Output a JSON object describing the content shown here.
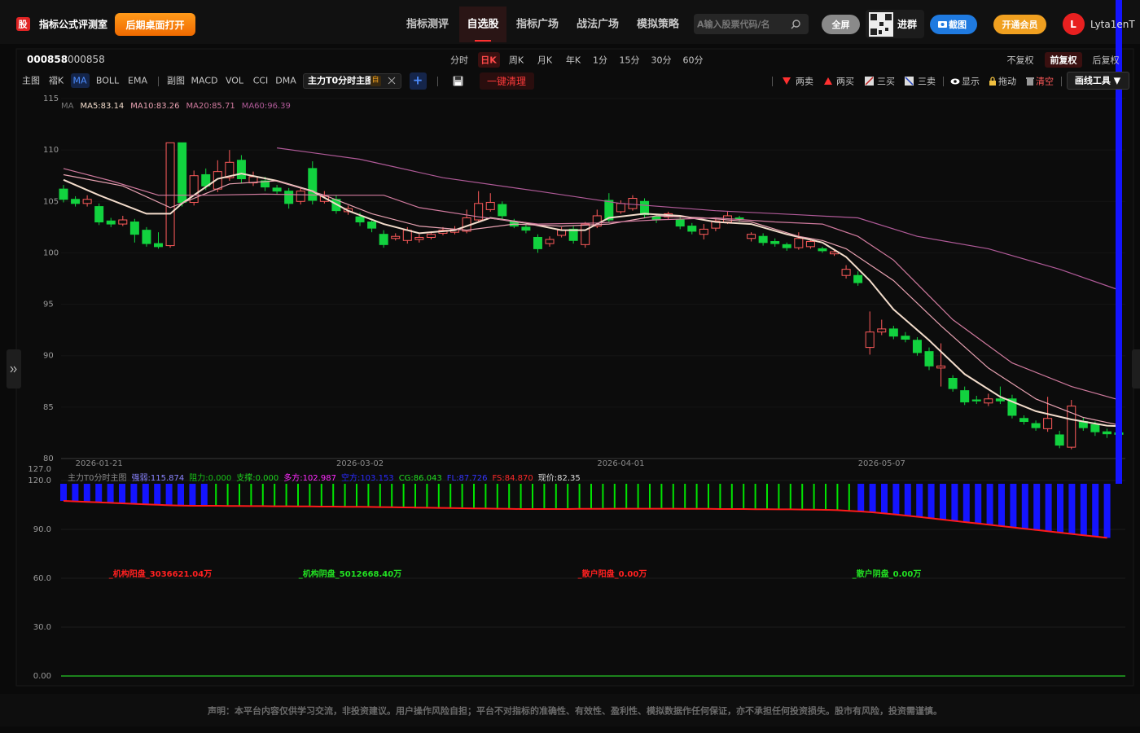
{
  "header": {
    "logo": "股",
    "title": "指标公式评测室",
    "open_button": "后期桌面打开",
    "nav": [
      "指标测评",
      "自选股",
      "指标广场",
      "战法广场",
      "模拟策略"
    ],
    "nav_active": 1,
    "search_placeholder": "A输入股票代码/名",
    "fullscreen": "全屏",
    "group": "进群",
    "screenshot": "截图",
    "vip": "开通会员",
    "avatar": "L",
    "user": "Lyta1enT"
  },
  "toolbar": {
    "code": "000858",
    "name": "000858",
    "periods": [
      "分时",
      "日K",
      "周K",
      "月K",
      "年K",
      "1分",
      "15分",
      "30分",
      "60分"
    ],
    "period_active": 1,
    "adjust": [
      "不复权",
      "前复权",
      "后复权"
    ],
    "adjust_active": 1,
    "main_label": "主图",
    "main_items": [
      "褶K",
      "MA",
      "BOLL",
      "EMA"
    ],
    "main_active": 1,
    "sub_label": "副图",
    "sub_items": [
      "MACD",
      "VOL",
      "CCI",
      "DMA"
    ],
    "indicator": "主力T0分时主图",
    "indicator_tag": "自",
    "add": "+",
    "clear": "一键清理",
    "signals": [
      "两卖",
      "两买",
      "三买",
      "三卖"
    ],
    "show": "显示",
    "drag": "拖动",
    "clear_drawings": "清空",
    "draw_tools": "画线工具 ▼"
  },
  "chart_data": [
    {
      "type": "candlestick",
      "categories": [
        null,
        null,
        null,
        "2026-01-21",
        null,
        null,
        null,
        null,
        null,
        null,
        null,
        null,
        null,
        null,
        null,
        null,
        null,
        null,
        null,
        null,
        null,
        null,
        null,
        null,
        null,
        "2026-03-02",
        null,
        null,
        null,
        null,
        null,
        null,
        null,
        null,
        null,
        null,
        null,
        null,
        null,
        null,
        null,
        null,
        null,
        null,
        null,
        null,
        null,
        "2026-04-01",
        null,
        null,
        null,
        null,
        null,
        null,
        null,
        null,
        null,
        null,
        null,
        null,
        null,
        null,
        null,
        null,
        null,
        null,
        null,
        null,
        null,
        "2026-05-07",
        null,
        null,
        null,
        null,
        null,
        null,
        null,
        null,
        null,
        null,
        null,
        null,
        null,
        null,
        null,
        null,
        null,
        null,
        null,
        null
      ],
      "open": [
        106.2,
        105.2,
        104.8,
        104.5,
        103.1,
        102.8,
        103.0,
        102.2,
        100.9,
        100.7,
        110.7,
        104.9,
        107.6,
        106.2,
        107.3,
        109.0,
        106.8,
        107.0,
        106.3,
        106.0,
        105.0,
        108.2,
        105.0,
        105.2,
        104.0,
        103.5,
        103.0,
        101.8,
        101.4,
        101.2,
        101.3,
        101.5,
        101.9,
        102.0,
        102.1,
        103.2,
        104.2,
        104.7,
        103.0,
        102.5,
        101.5,
        100.9,
        101.7,
        102.3,
        100.8,
        102.6,
        105.1,
        104.0,
        104.3,
        105.0,
        103.5,
        103.5,
        103.2,
        102.6,
        101.8,
        102.4,
        103.0,
        103.4,
        101.4,
        101.6,
        101.1,
        100.8,
        100.5,
        100.6,
        100.4,
        99.9,
        97.8,
        97.8,
        90.8,
        92.3,
        92.6,
        91.9,
        91.5,
        90.4,
        88.8,
        87.8,
        86.6,
        85.7,
        85.4,
        85.8,
        85.8,
        83.9,
        83.4,
        82.9,
        82.3,
        81.1,
        83.6,
        83.3,
        82.6,
        82.5
      ],
      "high": [
        106.6,
        105.5,
        105.6,
        104.8,
        103.4,
        103.6,
        103.3,
        102.5,
        102.0,
        110.7,
        110.7,
        108.0,
        108.2,
        109.0,
        110.0,
        109.5,
        107.9,
        107.4,
        106.6,
        106.3,
        106.4,
        108.9,
        106.0,
        105.6,
        104.6,
        103.9,
        103.3,
        102.2,
        101.9,
        102.5,
        101.8,
        102.1,
        102.5,
        102.6,
        104.2,
        106.0,
        105.8,
        105.0,
        103.3,
        102.8,
        101.8,
        101.6,
        102.5,
        102.6,
        103.0,
        104.2,
        105.8,
        105.1,
        105.6,
        105.3,
        103.8,
        104.0,
        103.5,
        102.9,
        102.8,
        103.4,
        104.0,
        103.6,
        102.0,
        101.9,
        101.4,
        101.0,
        102.0,
        101.3,
        100.6,
        100.3,
        98.8,
        98.2,
        94.3,
        93.5,
        92.9,
        92.3,
        91.8,
        90.8,
        91.2,
        88.1,
        87.0,
        86.1,
        86.3,
        87.0,
        86.2,
        84.2,
        83.7,
        86.0,
        82.7,
        85.7,
        84.0,
        83.6,
        82.9,
        82.8
      ],
      "low": [
        104.9,
        104.5,
        104.5,
        102.7,
        102.5,
        102.6,
        101.0,
        100.6,
        100.4,
        100.5,
        104.5,
        104.6,
        106.1,
        105.9,
        107.0,
        106.8,
        106.5,
        106.0,
        105.7,
        104.3,
        104.7,
        104.7,
        104.8,
        103.8,
        103.7,
        102.6,
        102.0,
        100.5,
        101.2,
        100.9,
        101.0,
        101.3,
        101.7,
        101.8,
        101.9,
        103.0,
        104.0,
        103.3,
        102.4,
        101.9,
        100.0,
        100.6,
        101.5,
        100.9,
        100.5,
        102.4,
        102.9,
        103.8,
        104.1,
        103.4,
        102.9,
        103.2,
        102.3,
        101.8,
        101.3,
        102.1,
        102.8,
        103.0,
        101.1,
        100.7,
        100.6,
        100.2,
        100.3,
        100.4,
        100.0,
        99.7,
        97.5,
        96.8,
        90.1,
        92.0,
        91.6,
        91.3,
        90.0,
        88.6,
        87.0,
        86.5,
        85.2,
        85.3,
        85.1,
        85.3,
        83.9,
        83.3,
        82.7,
        82.6,
        81.0,
        80.9,
        82.7,
        82.2,
        82.0,
        82.0
      ],
      "close": [
        105.2,
        104.8,
        105.2,
        103.0,
        102.8,
        103.2,
        101.8,
        100.9,
        100.6,
        110.7,
        104.9,
        107.5,
        106.5,
        107.9,
        108.8,
        107.2,
        107.4,
        106.4,
        106.0,
        104.8,
        106.0,
        105.1,
        105.5,
        104.1,
        104.3,
        103.0,
        102.4,
        100.8,
        101.6,
        102.2,
        101.5,
        101.8,
        102.2,
        102.3,
        103.4,
        104.8,
        104.9,
        103.6,
        102.6,
        102.2,
        100.4,
        101.3,
        102.2,
        101.2,
        102.8,
        103.6,
        103.2,
        104.8,
        105.3,
        103.7,
        103.2,
        103.8,
        102.6,
        102.1,
        102.3,
        103.1,
        103.6,
        103.3,
        101.8,
        101.0,
        100.9,
        100.5,
        101.4,
        101.1,
        100.2,
        100.1,
        98.4,
        97.1,
        92.3,
        92.6,
        91.9,
        91.6,
        90.3,
        89.0,
        89.0,
        86.8,
        85.5,
        85.6,
        85.8,
        85.6,
        84.2,
        83.6,
        83.0,
        83.9,
        81.3,
        85.1,
        83.0,
        82.6,
        82.4,
        82.35
      ],
      "up_color": "#ff5b5b",
      "down_color": "#12d23f",
      "ylim": [
        80,
        115
      ],
      "yticks": [
        80,
        85,
        90,
        95,
        100,
        105,
        110,
        115
      ],
      "grid": true,
      "ma_title": "MA",
      "ma_lines": [
        {
          "name": "MA5:83.14",
          "color": "#f3dccb",
          "x": [
            0,
            3,
            7,
            9,
            10,
            13,
            15,
            18,
            21,
            24,
            27,
            30,
            33,
            36,
            39,
            42,
            44,
            46,
            49,
            52,
            55,
            58,
            61,
            64,
            66,
            68,
            70,
            73,
            76,
            79,
            82,
            85,
            88,
            89
          ],
          "values": [
            107.1,
            105.6,
            103.8,
            103.8,
            104.8,
            107.2,
            107.7,
            107.0,
            106.0,
            104.1,
            102.8,
            101.9,
            102.2,
            103.4,
            102.9,
            102.2,
            102.2,
            103.4,
            103.8,
            103.6,
            103.0,
            102.8,
            101.8,
            101.0,
            99.6,
            97.3,
            94.5,
            91.5,
            88.2,
            86.0,
            84.6,
            83.8,
            83.2,
            83.14
          ]
        },
        {
          "name": "MA10:83.26",
          "color": "#e8a2b2",
          "x": [
            0,
            5,
            9,
            11,
            14,
            18,
            22,
            26,
            30,
            34,
            38,
            42,
            46,
            50,
            54,
            58,
            62,
            64,
            66,
            70,
            74,
            78,
            82,
            86,
            89
          ],
          "values": [
            107.6,
            106.5,
            104.4,
            105.3,
            106.7,
            107.0,
            105.6,
            103.8,
            102.6,
            102.2,
            102.8,
            102.6,
            102.8,
            103.6,
            103.4,
            103.0,
            101.6,
            101.2,
            100.4,
            97.3,
            92.9,
            88.8,
            85.8,
            84.0,
            83.26
          ]
        },
        {
          "name": "MA20:85.71",
          "color": "#d07a9e",
          "x": [
            0,
            4,
            8,
            12,
            17,
            22,
            27,
            30,
            35,
            40,
            45,
            50,
            55,
            60,
            64,
            67,
            70,
            75,
            80,
            85,
            89
          ],
          "values": [
            108.2,
            107.0,
            105.6,
            105.6,
            105.7,
            105.6,
            105.6,
            104.4,
            103.5,
            102.8,
            102.9,
            103.2,
            103.4,
            103.0,
            102.8,
            101.6,
            99.3,
            93.5,
            89.3,
            87.0,
            85.71
          ]
        },
        {
          "name": "MA60:96.39",
          "color": "#b05a98",
          "x": [
            18,
            25,
            32,
            40,
            47,
            55,
            62,
            67,
            72,
            78,
            84,
            89
          ],
          "values": [
            110.2,
            109.1,
            107.3,
            106.0,
            104.8,
            104.1,
            103.7,
            103.4,
            101.6,
            100.4,
            98.4,
            96.39
          ]
        }
      ]
    },
    {
      "type": "indicator",
      "legend": [
        {
          "text": "主力T0分时主图",
          "color": "#8a8a8a"
        },
        {
          "text": "强弱:115.874",
          "color": "#8a84ff"
        },
        {
          "text": "阻力:0.000",
          "color": "#17c217"
        },
        {
          "text": "支撑:0.000",
          "color": "#1fd41f"
        },
        {
          "text": "多方:102.987",
          "color": "#ff2bff"
        },
        {
          "text": "空方:103.153",
          "color": "#2a2aff"
        },
        {
          "text": "CG:86.043",
          "color": "#22e022"
        },
        {
          "text": "FL:87.726",
          "color": "#3535ff"
        },
        {
          "text": "FS:84.870",
          "color": "#ff2a2a"
        },
        {
          "text": "现价:82.35",
          "color": "#dddddd"
        }
      ],
      "ylim": [
        0,
        127
      ],
      "yticks": [
        {
          "value": 0,
          "label": "0.00"
        },
        {
          "value": 30,
          "label": "30.0"
        },
        {
          "value": 60,
          "label": "60.0"
        },
        {
          "value": 90,
          "label": "90.0"
        },
        {
          "value": 120,
          "label": "120.0"
        },
        {
          "value": 127,
          "label": "127.0"
        }
      ],
      "grid": true,
      "baseline_color": "#22aa22",
      "bar_top": 118,
      "bar_colors": [
        "#1414ff",
        "#1414ff",
        "#1414ff",
        "#1414ff",
        "#1414ff",
        "#1414ff",
        "#1414ff",
        "#1414ff",
        "#1414ff",
        "#1414ff",
        "#1414ff",
        "#1414ff",
        "#1414ff",
        "#00e400",
        "#00e400",
        "#00e400",
        "#00e400",
        "#00e400",
        "#00e400",
        "#00e400",
        "#00e400",
        "#00e400",
        "#00e400",
        "#00e400",
        "#00e400",
        "#00e400",
        "#00e400",
        "#00e400",
        "#00e400",
        "#00e400",
        "#00e400",
        "#00e400",
        "#00e400",
        "#00e400",
        "#00e400",
        "#00e400",
        "#00e400",
        "#00e400",
        "#00e400",
        "#00e400",
        "#00e400",
        "#00e400",
        "#00e400",
        "#00e400",
        "#00e400",
        "#00e400",
        "#00e400",
        "#00e400",
        "#00e400",
        "#00e400",
        "#00e400",
        "#00e400",
        "#00e400",
        "#00e400",
        "#00e400",
        "#00e400",
        "#00e400",
        "#00e400",
        "#00e400",
        "#00e400",
        "#00e400",
        "#00e400",
        "#00e400",
        "#00e400",
        "#00e400",
        "#00e400",
        "#00e400",
        "#00e400",
        "#1414ff",
        "#1414ff",
        "#1414ff",
        "#1414ff",
        "#1414ff",
        "#1414ff",
        "#1414ff",
        "#1414ff",
        "#1414ff",
        "#1414ff",
        "#1414ff",
        "#1414ff",
        "#1414ff",
        "#1414ff",
        "#1414ff",
        "#1414ff",
        "#1414ff",
        "#1414ff",
        "#1414ff",
        "#1414ff",
        "#1414ff",
        "#1414ff",
        "#1414ff"
      ],
      "series": [
        {
          "color": "#ff1a1a",
          "values": [
            107.5,
            107.2,
            106.9,
            106.6,
            106.3,
            106,
            105.7,
            105.4,
            105.1,
            104.8,
            104.6,
            104.5,
            104.5,
            104.5,
            104.4,
            104.4,
            104.3,
            104.3,
            104.2,
            104.2,
            104.1,
            104.1,
            104,
            104,
            103.9,
            103.9,
            103.8,
            103.7,
            103.6,
            103.5,
            103.4,
            103.3,
            103.2,
            103.1,
            103,
            102.9,
            102.8,
            102.7,
            102.6,
            102.5,
            102.5,
            102.5,
            102.5,
            102.5,
            102.6,
            102.6,
            102.6,
            102.7,
            102.7,
            102.7,
            102.7,
            102.7,
            102.7,
            102.6,
            102.6,
            102.6,
            102.5,
            102.5,
            102.5,
            102.4,
            102.4,
            102.3,
            102.3,
            102.2,
            102.1,
            102,
            101.8,
            101.4,
            101,
            100.5,
            99.8,
            99.1,
            98.4,
            97.6,
            96.8,
            96,
            95.2,
            94.4,
            93.6,
            92.8,
            92,
            91.2,
            90.4,
            89.6,
            88.8,
            88,
            87.2,
            86.4,
            85.6,
            84.8
          ]
        }
      ],
      "annotations": [
        {
          "text": "_机构阳盘_3036621.04万",
          "color": "#ff2020"
        },
        {
          "text": "_机构阴盘_5012668.40万",
          "color": "#22e022"
        },
        {
          "text": "_散户阳盘_0.00万",
          "color": "#ff2020"
        },
        {
          "text": "_散户阴盘_0.00万",
          "color": "#22e022"
        }
      ]
    }
  ],
  "footer": "声明：本平台内容仅供学习交流，非投资建议。用户操作风险自担；平台不对指标的准确性、有效性、盈利性、模拟数据作任何保证，亦不承担任何投资损失。股市有风险，投资需谨慎。"
}
